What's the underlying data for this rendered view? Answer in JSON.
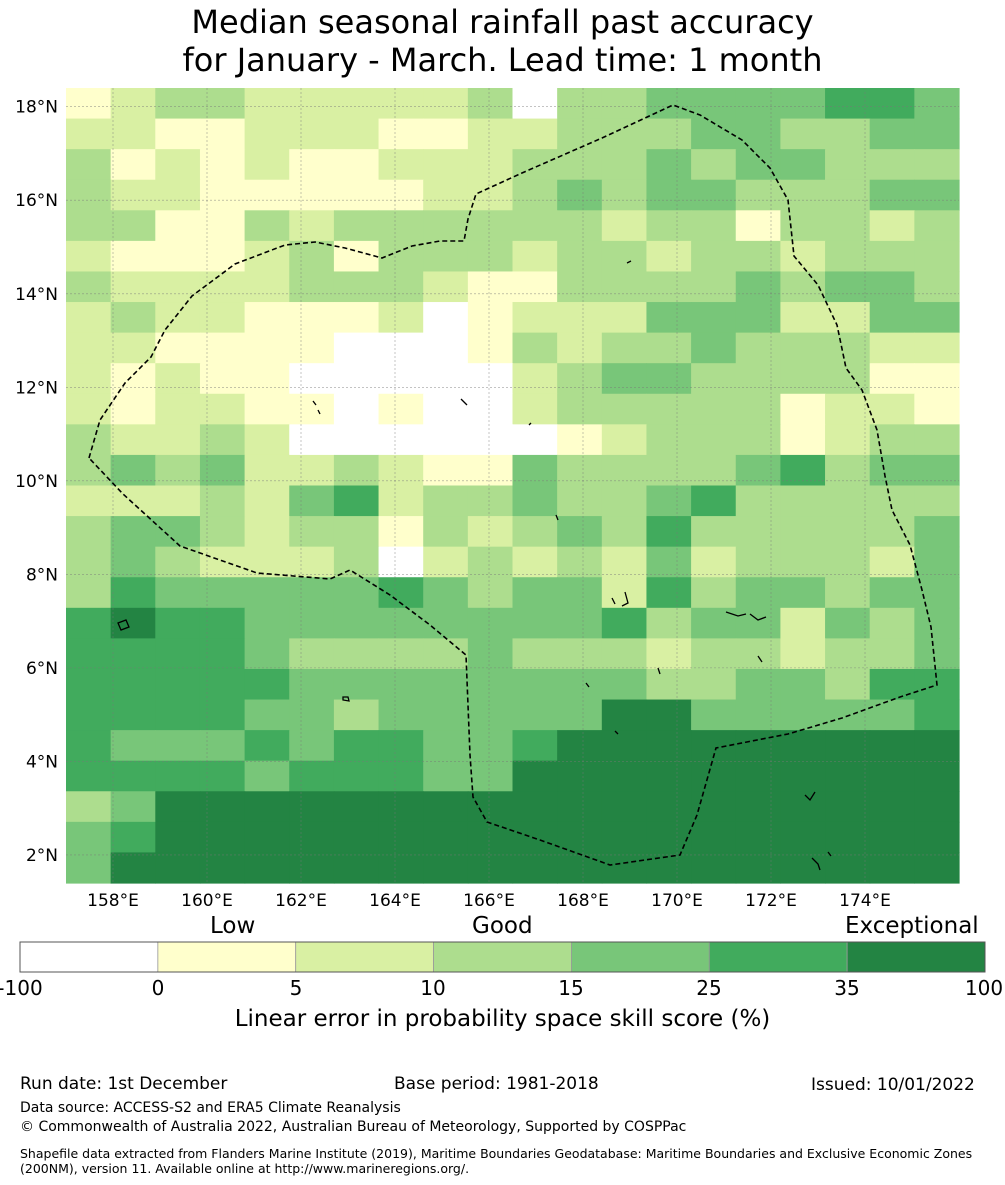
{
  "title": {
    "line1": "Median seasonal rainfall past accuracy",
    "line2": "for January - March. Lead time: 1 month"
  },
  "map": {
    "lat_range": [
      1.4,
      18.4
    ],
    "lon_range": [
      157.0,
      176.0
    ],
    "lat_ticks": [
      "2°N",
      "4°N",
      "6°N",
      "8°N",
      "10°N",
      "12°N",
      "14°N",
      "16°N",
      "18°N"
    ],
    "lon_ticks": [
      "158°E",
      "160°E",
      "162°E",
      "164°E",
      "166°E",
      "168°E",
      "170°E",
      "172°E",
      "174°E"
    ],
    "grid_cell_deg": 0.833,
    "skill_grid_rows_north_to_south": [
      "12332222230334444554",
      "22112221122333443344",
      "31212112223334344333",
      "32211111223434433344",
      "33113233333323313323",
      "21112313332332332333",
      "32222333211333343443",
      "23221112012224442244",
      "22111100013233433322",
      "21211000002344333311",
      "21221101002333331221",
      "32232000000123331233",
      "34342232114333345344",
      "22232452334334533333",
      "34432331323435333334",
      "34322230232324233324",
      "35444445434425344344",
      "56554444444453442434",
      "55554333343332332334",
      "55555444444443344355",
      "55554434444466444445",
      "54445455445666666666",
      "55554555446666666666",
      "34666666666666666666",
      "45666666666666666666",
      "46666666666666666666"
    ],
    "coastline_color": "#000000",
    "eez_boundary_style": "dashed"
  },
  "colorbar": {
    "category_labels": [
      "Low",
      "Good",
      "Exceptional"
    ],
    "tick_labels": [
      "-100",
      "0",
      "5",
      "10",
      "15",
      "25",
      "35",
      "100"
    ],
    "colors": [
      "#ffffff",
      "#ffffcc",
      "#d9f0a3",
      "#addd8e",
      "#78c679",
      "#41ab5d",
      "#238443"
    ],
    "caption": "Linear error in probability space skill score (%)"
  },
  "footer": {
    "run_date": "Run date: 1st December",
    "base_period": "Base period: 1981-2018",
    "issued": "Issued: 10/01/2022",
    "data_source": "Data source: ACCESS-S2 and ERA5 Climate Reanalysis",
    "copyright": "© Commonwealth of Australia 2022, Australian Bureau of Meteorology, Supported by COSPPac",
    "shapefile_note": "Shapefile data extracted from Flanders Marine Institute (2019), Maritime Boundaries Geodatabase: Maritime Boundaries and Exclusive Economic Zones (200NM), version 11. Available online at http://www.marineregions.org/."
  }
}
